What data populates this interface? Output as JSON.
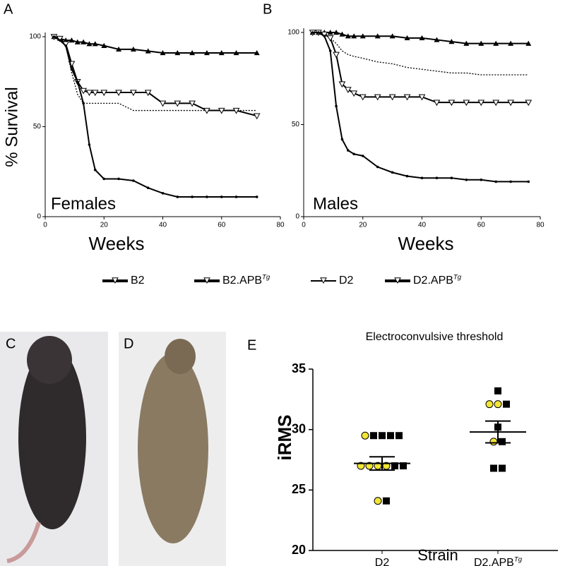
{
  "chart_data": [
    {
      "type": "line",
      "panel_label": "A",
      "annotation": "Females",
      "ylabel": "% Survival",
      "xlabel": "Weeks",
      "xlim": [
        0,
        80
      ],
      "xticks": [
        0,
        20,
        40,
        60,
        80
      ],
      "ylim": [
        0,
        100
      ],
      "yticks": [
        0,
        50,
        100
      ],
      "x": [
        3,
        5,
        7,
        9,
        11,
        13,
        15,
        17,
        20,
        25,
        30,
        35,
        40,
        45,
        50,
        55,
        60,
        65,
        72
      ],
      "series": [
        {
          "name": "B2",
          "superscript": null,
          "color": "#000000",
          "marker": "triangle-up",
          "dashed": false,
          "values": [
            100,
            99,
            98,
            98,
            97,
            97,
            96,
            96,
            95,
            93,
            93,
            92,
            91,
            91,
            91,
            91,
            91,
            91,
            91
          ]
        },
        {
          "name": "B2.APB",
          "superscript": "Tg",
          "color": "#000000",
          "marker": "none",
          "dashed": true,
          "values": [
            100,
            99,
            95,
            80,
            68,
            63,
            63,
            63,
            63,
            63,
            59,
            59,
            59,
            59,
            59,
            59,
            59,
            59,
            59
          ]
        },
        {
          "name": "D2",
          "superscript": null,
          "color": "#000000",
          "marker": "triangle-down",
          "dashed": false,
          "values": [
            100,
            99,
            96,
            85,
            75,
            70,
            69,
            69,
            69,
            69,
            69,
            69,
            63,
            63,
            63,
            59,
            59,
            59,
            56
          ]
        },
        {
          "name": "D2.APB",
          "superscript": "Tg",
          "color": "#000000",
          "marker": "dot",
          "dashed": false,
          "values": [
            100,
            98,
            95,
            82,
            75,
            63,
            40,
            26,
            21,
            21,
            20,
            16,
            13,
            11,
            11,
            11,
            11,
            11,
            11
          ]
        }
      ]
    },
    {
      "type": "line",
      "panel_label": "B",
      "annotation": "Males",
      "xlabel": "Weeks",
      "xlim": [
        0,
        80
      ],
      "xticks": [
        0,
        20,
        40,
        60,
        80
      ],
      "ylim": [
        0,
        100
      ],
      "yticks": [
        0,
        50,
        100
      ],
      "x": [
        3,
        5,
        7,
        9,
        11,
        13,
        15,
        17,
        20,
        25,
        30,
        35,
        40,
        45,
        50,
        55,
        60,
        65,
        70,
        76
      ],
      "series": [
        {
          "color": "#000000",
          "marker": "triangle-up",
          "dashed": false,
          "values": [
            100,
            100,
            100,
            100,
            100,
            99,
            98,
            98,
            98,
            98,
            98,
            97,
            97,
            96,
            95,
            94,
            94,
            94,
            94,
            94
          ]
        },
        {
          "color": "#000000",
          "marker": "none",
          "dashed": true,
          "values": [
            100,
            100,
            99,
            97,
            94,
            90,
            88,
            87,
            86,
            84,
            83,
            81,
            80,
            79,
            78,
            78,
            77,
            77,
            77,
            77
          ]
        },
        {
          "color": "#000000",
          "marker": "triangle-down",
          "dashed": false,
          "values": [
            100,
            100,
            99,
            97,
            88,
            72,
            69,
            67,
            65,
            65,
            65,
            65,
            65,
            62,
            62,
            62,
            62,
            62,
            62,
            62
          ]
        },
        {
          "color": "#000000",
          "marker": "dot",
          "dashed": false,
          "values": [
            100,
            100,
            98,
            90,
            60,
            42,
            36,
            34,
            33,
            27,
            24,
            22,
            21,
            21,
            21,
            20,
            20,
            19,
            19,
            19
          ]
        }
      ]
    },
    {
      "type": "dotplot",
      "panel_label": "E",
      "title": "Electroconvulsive threshold",
      "ylabel": "iRMS",
      "xlabel": "Strain",
      "categories": [
        "D2",
        "D2.APB"
      ],
      "category_superscripts": [
        null,
        "Tg"
      ],
      "ylim": [
        20,
        35
      ],
      "yticks": [
        20,
        25,
        30,
        35
      ],
      "groups": [
        {
          "circles": [
            29.5,
            27,
            27,
            27,
            27,
            24.1
          ],
          "squares": [
            29.5,
            29.5,
            29.5,
            29.5,
            27,
            27,
            24.1
          ],
          "mean": 27.2,
          "sem": 0.55
        },
        {
          "circles": [
            32.1,
            32.1,
            29.0
          ],
          "squares": [
            33.2,
            32.1,
            30.2,
            29.0,
            26.8,
            26.8
          ],
          "mean": 29.8,
          "sem": 0.9
        }
      ],
      "circle_color": "#f2e533",
      "square_color": "#000000"
    }
  ],
  "photo_panels": [
    {
      "label": "C"
    },
    {
      "label": "D"
    }
  ]
}
